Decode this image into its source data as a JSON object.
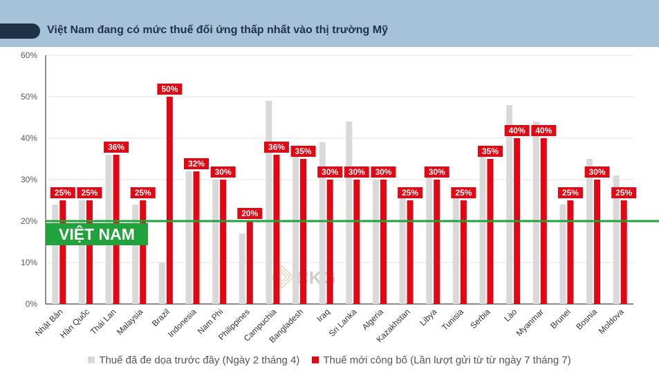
{
  "header": {
    "title": "Việt Nam đang có mức thuế đối ứng thấp nhất vào thị trường Mỹ"
  },
  "watermark": "CKG",
  "colors": {
    "header_bg": "#a6c2d9",
    "previous": "#d9d9d9",
    "new": "#e30613",
    "reference_line": "#1fa33a"
  },
  "chart_data": {
    "type": "bar",
    "categories": [
      "Nhật Bản",
      "Hàn Quốc",
      "Thái Lan",
      "Malaysia",
      "Brazil",
      "Indonesia",
      "Nam Phi",
      "Philippines",
      "Campuchia",
      "Bangladesh",
      "Iraq",
      "Sri Lanka",
      "Algeria",
      "Kazakhstan",
      "Libya",
      "Tunisia",
      "Serbia",
      "Lào",
      "Myanmar",
      "Brunei",
      "Bosnia",
      "Moldova"
    ],
    "series": [
      {
        "name": "Thuế đã đe dọa trước đây (Ngày 2 tháng 4)",
        "values": [
          24,
          25,
          36,
          24,
          10,
          32,
          30,
          17,
          49,
          37,
          39,
          44,
          30,
          27,
          31,
          28,
          37,
          48,
          44,
          24,
          35,
          31
        ]
      },
      {
        "name": "Thuế mới công bố (Lần lượt gửi từ từ ngày 7 tháng 7)",
        "values": [
          25,
          25,
          36,
          25,
          50,
          32,
          30,
          20,
          36,
          35,
          30,
          30,
          30,
          25,
          30,
          25,
          35,
          40,
          40,
          25,
          30,
          25
        ],
        "labels": [
          "25%",
          "25%",
          "36%",
          "25%",
          "50%",
          "32%",
          "30%",
          "20%",
          "36%",
          "35%",
          "30%",
          "30%",
          "30%",
          "25%",
          "30%",
          "25%",
          "35%",
          "40%",
          "40%",
          "25%",
          "30%",
          "25%"
        ]
      }
    ],
    "ylim": [
      0,
      60
    ],
    "yticks": [
      "0%",
      "10%",
      "20%",
      "30%",
      "40%",
      "50%",
      "60%"
    ],
    "reference_line": {
      "value": 20,
      "label": "VIỆT NAM"
    },
    "grid": true,
    "legend_position": "bottom"
  }
}
